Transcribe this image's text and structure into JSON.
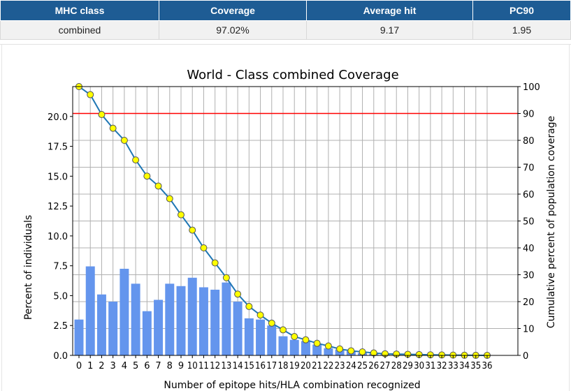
{
  "summary_table": {
    "headers": [
      "MHC class",
      "Coverage",
      "Average hit",
      "PC90"
    ],
    "row": [
      "combined",
      "97.02%",
      "9.17",
      "1.95"
    ]
  },
  "colors": {
    "header_bg": "#1e5c94",
    "bar": "#6495ed",
    "line": "#1f77b4",
    "marker": "#ffff00",
    "threshold": "#ff0000"
  },
  "chart_data": {
    "type": "bar",
    "title": "World - Class combined Coverage",
    "xlabel": "Number of epitope hits/HLA combination recognized",
    "ylabel": "Percent of individuals",
    "y2label": "Cumulative percent of population coverage",
    "ylim": [
      0,
      22.5
    ],
    "y2lim": [
      0,
      100
    ],
    "yticks": [
      0.0,
      2.5,
      5.0,
      7.5,
      10.0,
      12.5,
      15.0,
      17.5,
      20.0
    ],
    "ytick_labels": [
      "0.0",
      "2.5",
      "5.0",
      "7.5",
      "10.0",
      "12.5",
      "15.0",
      "17.5",
      "20.0"
    ],
    "y2ticks": [
      0,
      10,
      20,
      30,
      40,
      50,
      60,
      70,
      80,
      90,
      100
    ],
    "y2tick_labels": [
      "0",
      "10",
      "20",
      "30",
      "40",
      "50",
      "60",
      "70",
      "80",
      "90",
      "100"
    ],
    "grid": true,
    "categories": [
      "0",
      "1",
      "2",
      "3",
      "4",
      "5",
      "6",
      "7",
      "8",
      "9",
      "10",
      "11",
      "12",
      "13",
      "14",
      "15",
      "16",
      "17",
      "18",
      "19",
      "20",
      "21",
      "22",
      "23",
      "24",
      "25",
      "26",
      "27",
      "28",
      "29",
      "30",
      "31",
      "32",
      "33",
      "34",
      "35",
      "36"
    ],
    "series": [
      {
        "values": [
          3.0,
          7.45,
          5.1,
          4.5,
          7.25,
          6.0,
          3.7,
          4.65,
          6.0,
          5.8,
          6.5,
          5.7,
          5.5,
          6.1,
          4.5,
          3.1,
          3.0,
          2.5,
          1.6,
          1.3,
          1.2,
          0.9,
          0.6,
          0.5,
          0.35,
          0.2,
          0.15,
          0.1,
          0.05,
          0.03,
          0.02,
          0.01,
          0.01,
          0.0,
          0.0,
          0.0,
          0.0
        ]
      },
      {
        "axis": "right",
        "values": [
          100,
          97.0,
          89.6,
          84.5,
          80.0,
          72.7,
          66.7,
          63.0,
          58.3,
          52.3,
          46.6,
          40.0,
          34.4,
          28.9,
          22.8,
          18.2,
          15.0,
          12.0,
          9.5,
          7.0,
          5.8,
          4.5,
          3.5,
          2.4,
          1.7,
          1.3,
          0.9,
          0.6,
          0.5,
          0.4,
          0.3,
          0.2,
          0.15,
          0.1,
          0.05,
          0.02,
          0.01
        ]
      }
    ],
    "threshold_line": {
      "axis": "right",
      "value": 90
    }
  }
}
